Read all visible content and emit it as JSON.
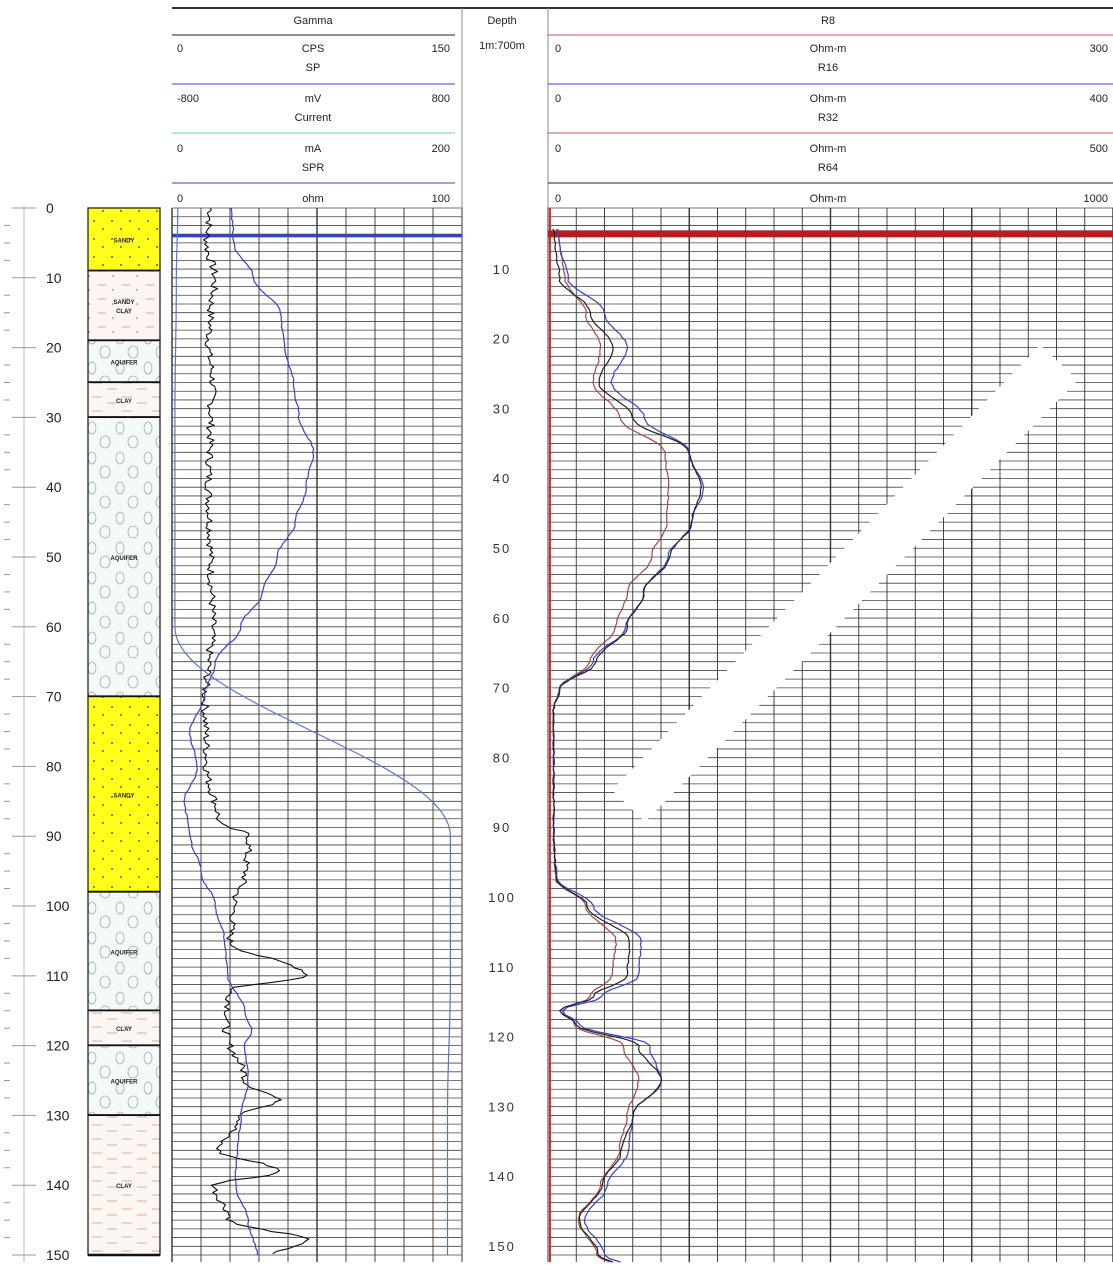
{
  "chart_data": {
    "type": "line",
    "depth_track": {
      "label": "Depth",
      "scale": "1m:700m",
      "range": [
        0,
        150
      ],
      "tick_labels": [
        "10",
        "20",
        "30",
        "40",
        "50",
        "60",
        "70",
        "80",
        "90",
        "100",
        "110",
        "120",
        "130",
        "140",
        "150"
      ]
    },
    "lithology": {
      "axis_ticks": [
        "0",
        "10",
        "20",
        "30",
        "40",
        "50",
        "60",
        "70",
        "80",
        "90",
        "100",
        "110",
        "120",
        "130",
        "140",
        "150"
      ],
      "layers": [
        {
          "top": 0,
          "bottom": 9,
          "label": "SANDY",
          "pattern": "sand"
        },
        {
          "top": 9,
          "bottom": 19,
          "label": "SANDY CLAY",
          "pattern": "sandy-clay"
        },
        {
          "top": 19,
          "bottom": 25,
          "label": "AQUIFER",
          "pattern": "aquifer"
        },
        {
          "top": 25,
          "bottom": 30,
          "label": "CLAY",
          "pattern": "clay"
        },
        {
          "top": 30,
          "bottom": 70,
          "label": "AQUIFER",
          "pattern": "aquifer"
        },
        {
          "top": 70,
          "bottom": 98,
          "label": "SANDY",
          "pattern": "sand"
        },
        {
          "top": 98,
          "bottom": 115,
          "label": "AQUIFER",
          "pattern": "aquifer"
        },
        {
          "top": 115,
          "bottom": 120,
          "label": "CLAY",
          "pattern": "clay"
        },
        {
          "top": 120,
          "bottom": 130,
          "label": "AQUIFER",
          "pattern": "aquifer"
        },
        {
          "top": 130,
          "bottom": 150,
          "label": "CLAY",
          "pattern": "clay"
        }
      ]
    },
    "left_track": {
      "curves": [
        {
          "name": "Gamma",
          "unit": "CPS",
          "min": "0",
          "max": "150",
          "color": "#222222"
        },
        {
          "name": "SP",
          "unit": "mV",
          "min": "-800",
          "max": "800",
          "color": "#3344cc"
        },
        {
          "name": "Current",
          "unit": "mA",
          "min": "0",
          "max": "200",
          "color": "#66ccdd"
        },
        {
          "name": "SPR",
          "unit": "ohm",
          "min": "0",
          "max": "100",
          "color": "#3344cc"
        }
      ]
    },
    "right_track": {
      "curves": [
        {
          "name": "R8",
          "unit": "Ohm-m",
          "min": "0",
          "max": "300",
          "color": "#aa4444"
        },
        {
          "name": "R16",
          "unit": "Ohm-m",
          "min": "0",
          "max": "400",
          "color": "#3344cc"
        },
        {
          "name": "R32",
          "unit": "Ohm-m",
          "min": "0",
          "max": "500",
          "color": "#aa4444"
        },
        {
          "name": "R64",
          "unit": "Ohm-m",
          "min": "0",
          "max": "1000",
          "color": "#222222"
        }
      ]
    },
    "series": [
      {
        "name": "Gamma",
        "scale_max": 150,
        "color": "#111111",
        "points": [
          [
            0,
            20
          ],
          [
            5,
            18
          ],
          [
            10,
            22
          ],
          [
            15,
            20
          ],
          [
            20,
            19
          ],
          [
            25,
            21
          ],
          [
            30,
            20
          ],
          [
            40,
            19
          ],
          [
            50,
            20
          ],
          [
            60,
            21
          ],
          [
            65,
            19
          ],
          [
            70,
            17
          ],
          [
            80,
            18
          ],
          [
            88,
            24
          ],
          [
            90,
            40
          ],
          [
            95,
            38
          ],
          [
            100,
            32
          ],
          [
            105,
            30
          ],
          [
            110,
            70
          ],
          [
            112,
            30
          ],
          [
            118,
            28
          ],
          [
            125,
            38
          ],
          [
            128,
            55
          ],
          [
            130,
            36
          ],
          [
            135,
            24
          ],
          [
            138,
            56
          ],
          [
            140,
            22
          ],
          [
            145,
            30
          ],
          [
            148,
            70
          ],
          [
            150,
            50
          ]
        ]
      },
      {
        "name": "SP",
        "scale_min": -800,
        "scale_max": 800,
        "color": "#3344cc",
        "points": [
          [
            0,
            -470
          ],
          [
            5,
            -460
          ],
          [
            10,
            -350
          ],
          [
            15,
            -200
          ],
          [
            20,
            -180
          ],
          [
            25,
            -130
          ],
          [
            30,
            -100
          ],
          [
            35,
            -20
          ],
          [
            40,
            -60
          ],
          [
            45,
            -120
          ],
          [
            50,
            -220
          ],
          [
            55,
            -300
          ],
          [
            60,
            -420
          ],
          [
            65,
            -560
          ],
          [
            70,
            -620
          ],
          [
            75,
            -700
          ],
          [
            80,
            -660
          ],
          [
            85,
            -730
          ],
          [
            90,
            -700
          ],
          [
            95,
            -640
          ],
          [
            100,
            -560
          ],
          [
            105,
            -510
          ],
          [
            110,
            -490
          ],
          [
            115,
            -400
          ],
          [
            118,
            -360
          ],
          [
            120,
            -400
          ],
          [
            125,
            -380
          ],
          [
            130,
            -420
          ],
          [
            135,
            -440
          ],
          [
            140,
            -450
          ],
          [
            145,
            -380
          ],
          [
            150,
            -330
          ]
        ]
      },
      {
        "name": "SPR",
        "scale_max": 100,
        "color": "#5577cc",
        "points": [
          [
            0,
            2
          ],
          [
            10,
            1.5
          ],
          [
            30,
            1
          ],
          [
            60,
            1
          ],
          [
            90,
            96
          ],
          [
            110,
            96
          ],
          [
            130,
            95
          ],
          [
            150,
            95
          ]
        ]
      },
      {
        "name": "R8",
        "scale_max": 300,
        "color": "#aa4444",
        "points": [
          [
            3,
            5
          ],
          [
            5,
            6
          ],
          [
            10,
            9
          ],
          [
            15,
            20
          ],
          [
            20,
            28
          ],
          [
            25,
            24
          ],
          [
            30,
            38
          ],
          [
            35,
            62
          ],
          [
            40,
            64
          ],
          [
            45,
            63
          ],
          [
            50,
            55
          ],
          [
            55,
            42
          ],
          [
            60,
            36
          ],
          [
            65,
            22
          ],
          [
            69,
            6
          ],
          [
            72,
            3
          ],
          [
            80,
            3
          ],
          [
            90,
            3
          ],
          [
            96,
            4
          ],
          [
            100,
            20
          ],
          [
            105,
            36
          ],
          [
            110,
            34
          ],
          [
            113,
            22
          ],
          [
            115,
            8
          ],
          [
            117,
            14
          ],
          [
            120,
            40
          ],
          [
            125,
            48
          ],
          [
            130,
            42
          ],
          [
            135,
            38
          ],
          [
            140,
            28
          ],
          [
            145,
            16
          ],
          [
            150,
            26
          ],
          [
            152,
            40
          ]
        ]
      },
      {
        "name": "R16",
        "scale_max": 400,
        "color": "#3344cc",
        "points": [
          [
            3,
            7
          ],
          [
            5,
            8
          ],
          [
            10,
            14
          ],
          [
            15,
            40
          ],
          [
            20,
            56
          ],
          [
            25,
            45
          ],
          [
            30,
            68
          ],
          [
            35,
            100
          ],
          [
            40,
            110
          ],
          [
            45,
            102
          ],
          [
            50,
            85
          ],
          [
            55,
            68
          ],
          [
            60,
            55
          ],
          [
            65,
            32
          ],
          [
            69,
            8
          ],
          [
            72,
            4
          ],
          [
            80,
            4
          ],
          [
            90,
            4
          ],
          [
            96,
            6
          ],
          [
            100,
            32
          ],
          [
            105,
            66
          ],
          [
            110,
            64
          ],
          [
            113,
            38
          ],
          [
            115,
            10
          ],
          [
            117,
            22
          ],
          [
            120,
            72
          ],
          [
            125,
            80
          ],
          [
            130,
            60
          ],
          [
            135,
            57
          ],
          [
            140,
            42
          ],
          [
            145,
            26
          ],
          [
            150,
            40
          ],
          [
            152,
            62
          ]
        ]
      },
      {
        "name": "R64",
        "scale_max": 1000,
        "color": "#222222",
        "points": [
          [
            3,
            10
          ],
          [
            5,
            12
          ],
          [
            10,
            20
          ],
          [
            15,
            75
          ],
          [
            20,
            115
          ],
          [
            25,
            90
          ],
          [
            30,
            150
          ],
          [
            35,
            250
          ],
          [
            40,
            270
          ],
          [
            45,
            255
          ],
          [
            50,
            215
          ],
          [
            55,
            170
          ],
          [
            60,
            140
          ],
          [
            65,
            85
          ],
          [
            69,
            20
          ],
          [
            72,
            10
          ],
          [
            80,
            10
          ],
          [
            90,
            10
          ],
          [
            96,
            14
          ],
          [
            100,
            70
          ],
          [
            105,
            145
          ],
          [
            110,
            140
          ],
          [
            113,
            80
          ],
          [
            115,
            20
          ],
          [
            117,
            50
          ],
          [
            120,
            160
          ],
          [
            125,
            200
          ],
          [
            130,
            150
          ],
          [
            135,
            130
          ],
          [
            140,
            95
          ],
          [
            145,
            55
          ],
          [
            150,
            90
          ],
          [
            152,
            140
          ]
        ]
      }
    ]
  }
}
